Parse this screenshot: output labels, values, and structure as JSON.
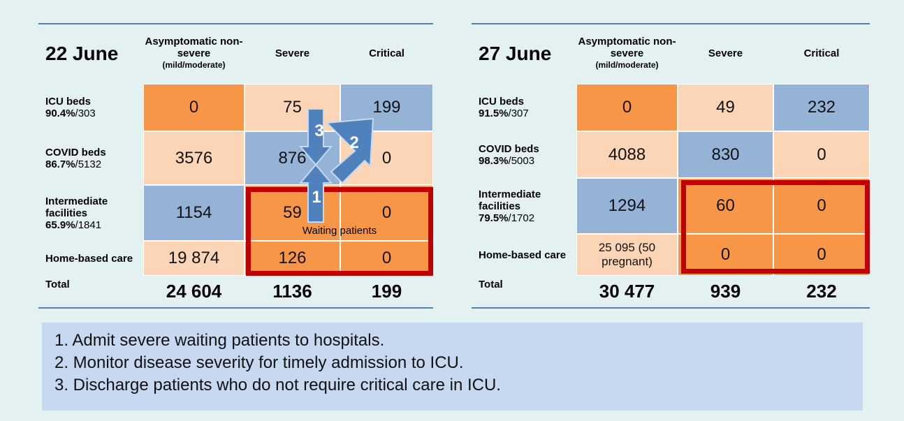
{
  "tables": [
    {
      "title": "22 June",
      "headers": [
        {
          "main": "Asymptomatic non-severe",
          "sub": "(mild/moderate)"
        },
        {
          "main": "Severe"
        },
        {
          "main": "Critical"
        }
      ],
      "rows": [
        {
          "label": "ICU beds",
          "pct": "90.4%",
          "capacity": "/303",
          "cells": [
            "0",
            "75",
            "199"
          ]
        },
        {
          "label": "COVID beds",
          "pct": "86.7%",
          "capacity": "/5132",
          "cells": [
            "3576",
            "876",
            "0"
          ]
        },
        {
          "label": "Intermediate facilities",
          "pct": "65.9%",
          "capacity": "/1841",
          "cells": [
            "1154",
            "59",
            "0"
          ]
        },
        {
          "label": "Home-based care",
          "cells": [
            "19 874",
            "126",
            "0"
          ]
        }
      ],
      "total": {
        "label": "Total",
        "cells": [
          "24 604",
          "1136",
          "199"
        ]
      },
      "box_label": "Waiting patients",
      "arrows": [
        "1",
        "2",
        "3"
      ]
    },
    {
      "title": "27 June",
      "headers": [
        {
          "main": "Asymptomatic non-severe",
          "sub": "(mild/moderate)"
        },
        {
          "main": "Severe"
        },
        {
          "main": "Critical"
        }
      ],
      "rows": [
        {
          "label": "ICU beds",
          "pct": "91.5%",
          "capacity": "/307",
          "cells": [
            "0",
            "49",
            "232"
          ]
        },
        {
          "label": "COVID beds",
          "pct": "98.3%",
          "capacity": "/5003",
          "cells": [
            "4088",
            "830",
            "0"
          ]
        },
        {
          "label": "Intermediate facilities",
          "pct": "79.5%",
          "capacity": "/1702",
          "cells": [
            "1294",
            "60",
            "0"
          ]
        },
        {
          "label": "Home-based care",
          "cells": [
            "25 095 (50 pregnant)",
            "0",
            "0"
          ]
        }
      ],
      "total": {
        "label": "Total",
        "cells": [
          "30 477",
          "939",
          "232"
        ]
      }
    }
  ],
  "notes": [
    "1. Admit severe waiting patients to hospitals.",
    "2. Monitor disease severity for timely admission to ICU.",
    "3. Discharge patients who do not require critical care in ICU."
  ]
}
